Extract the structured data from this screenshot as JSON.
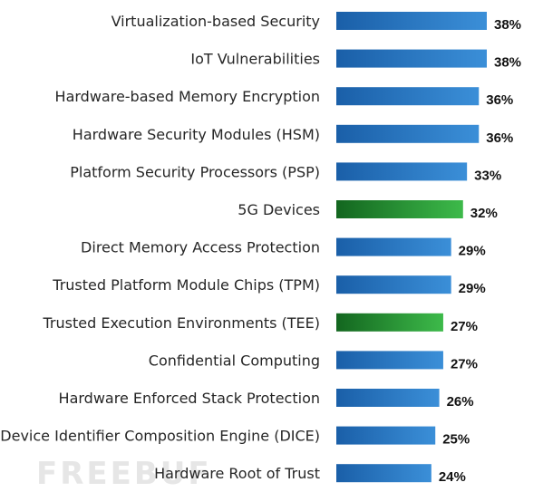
{
  "watermark": "FREEBUF",
  "chart_data": {
    "type": "bar",
    "orientation": "horizontal",
    "title": "",
    "xlabel": "",
    "ylabel": "",
    "grid": false,
    "value_suffix": "%",
    "xlim": [
      0,
      38
    ],
    "categories": [
      "Virtualization-based Security",
      "IoT Vulnerabilities",
      "Hardware-based Memory Encryption",
      "Hardware Security Modules (HSM)",
      "Platform Security Processors (PSP)",
      "5G Devices",
      "Direct Memory Access Protection",
      "Trusted Platform Module Chips (TPM)",
      "Trusted Execution Environments (TEE)",
      "Confidential Computing",
      "Hardware Enforced Stack Protection",
      "Device Identifier Composition Engine (DICE)",
      "Hardware Root of Trust"
    ],
    "values": [
      38,
      38,
      36,
      36,
      33,
      32,
      29,
      29,
      27,
      27,
      26,
      25,
      24
    ],
    "value_labels": [
      "38%",
      "38%",
      "36%",
      "36%",
      "33%",
      "32%",
      "29%",
      "29%",
      "27%",
      "27%",
      "26%",
      "25%",
      "24%"
    ],
    "highlighted": [
      false,
      false,
      false,
      false,
      false,
      true,
      false,
      false,
      true,
      false,
      false,
      false,
      false
    ],
    "colors": {
      "default_start": "#1a5fa8",
      "default_end": "#3b8fd8",
      "highlight_start": "#13661f",
      "highlight_end": "#3dba4a"
    }
  }
}
